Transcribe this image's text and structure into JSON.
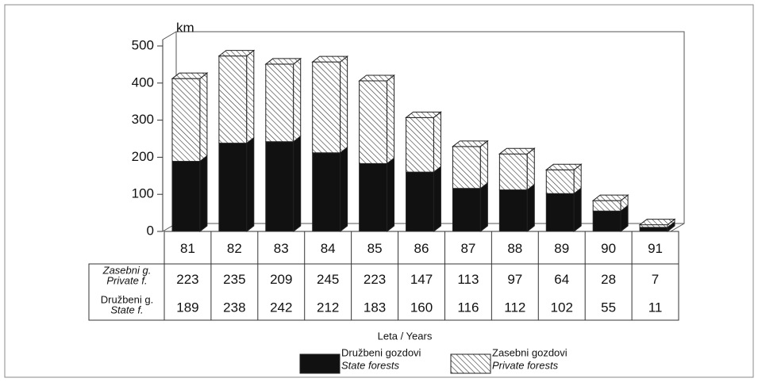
{
  "chart_data": {
    "type": "stacked_bar_3d",
    "y_label": "km",
    "x_label": "Leta / Years",
    "categories": [
      "81",
      "82",
      "83",
      "84",
      "85",
      "86",
      "87",
      "88",
      "89",
      "90",
      "91"
    ],
    "series": [
      {
        "name": "Družbeni gozdovi",
        "name_en": "State forests",
        "table_label": "Družbeni g.",
        "table_label_en": "State f.",
        "color": "#111111",
        "pattern": "solid",
        "values": [
          189,
          238,
          242,
          212,
          183,
          160,
          116,
          112,
          102,
          55,
          11
        ]
      },
      {
        "name": "Zasebni gozdovi",
        "name_en": "Private forests",
        "table_label": "Zasebni g.",
        "table_label_en": "Private f.",
        "color": "#333333",
        "pattern": "hatch",
        "values": [
          223,
          235,
          209,
          245,
          223,
          147,
          113,
          97,
          64,
          28,
          7
        ]
      }
    ],
    "ylim": [
      0,
      500
    ],
    "yticks": [
      0,
      100,
      200,
      300,
      400,
      500
    ],
    "grid": false
  }
}
